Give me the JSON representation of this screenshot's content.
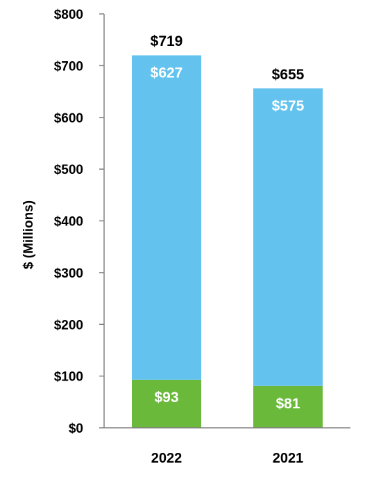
{
  "chart_data": {
    "type": "bar",
    "stacked": true,
    "categories": [
      "2022",
      "2021"
    ],
    "series": [
      {
        "values": [
          93,
          81
        ],
        "labels": [
          "$93",
          "$81"
        ],
        "color": "#6ab93a"
      },
      {
        "values": [
          627,
          575
        ],
        "labels": [
          "$627",
          "$575"
        ],
        "color": "#63c3ee"
      }
    ],
    "totals": [
      719,
      655
    ],
    "total_labels": [
      "$719",
      "$655"
    ],
    "ylabel": "$ (Millions)",
    "ylim": [
      0,
      800
    ],
    "yticks": [
      0,
      100,
      200,
      300,
      400,
      500,
      600,
      700,
      800
    ],
    "ytick_labels": [
      "$0",
      "$100",
      "$200",
      "$300",
      "$400",
      "$500",
      "$600",
      "$700",
      "$800"
    ],
    "grid": false,
    "legend": "none"
  }
}
